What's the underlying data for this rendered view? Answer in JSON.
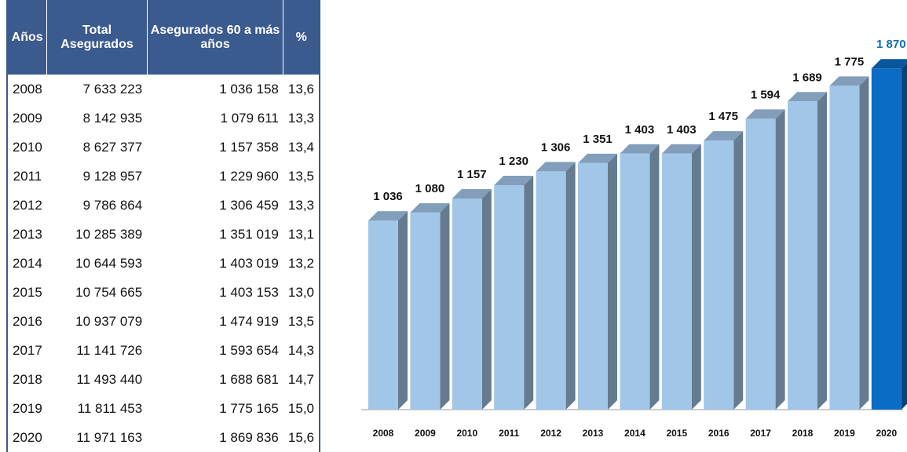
{
  "table": {
    "header": [
      "Años",
      "Total Asegurados",
      "Asegurados 60 a más años",
      "%"
    ],
    "rows": [
      [
        "2008",
        "7 633 223",
        "1 036 158",
        "13,6"
      ],
      [
        "2009",
        "8 142 935",
        "1 079 611",
        "13,3"
      ],
      [
        "2010",
        "8 627 377",
        "1 157 358",
        "13,4"
      ],
      [
        "2011",
        "9 128 957",
        "1 229 960",
        "13,5"
      ],
      [
        "2012",
        "9 786 864",
        "1 306 459",
        "13,3"
      ],
      [
        "2013",
        "10 285 389",
        "1 351 019",
        "13,1"
      ],
      [
        "2014",
        "10 644 593",
        "1 403 019",
        "13,2"
      ],
      [
        "2015",
        "10 754 665",
        "1 403 153",
        "13,0"
      ],
      [
        "2016",
        "10 937 079",
        "1 474 919",
        "13,5"
      ],
      [
        "2017",
        "11 141 726",
        "1 593 654",
        "14,3"
      ],
      [
        "2018",
        "11 493 440",
        "1 688 681",
        "14,7"
      ],
      [
        "2019",
        "11 811 453",
        "1 775 165",
        "15,0"
      ],
      [
        "2020",
        "11 971 163",
        "1 869 836",
        "15,6"
      ]
    ]
  },
  "chart_data": {
    "type": "bar3d",
    "categories": [
      "2008",
      "2009",
      "2010",
      "2011",
      "2012",
      "2013",
      "2014",
      "2015",
      "2016",
      "2017",
      "2018",
      "2019",
      "2020"
    ],
    "values": [
      1036,
      1080,
      1157,
      1230,
      1306,
      1351,
      1403,
      1403,
      1475,
      1594,
      1689,
      1775,
      1870
    ],
    "value_labels": [
      "1 036",
      "1 080",
      "1 157",
      "1 230",
      "1 306",
      "1 351",
      "1 403",
      "1 403",
      "1 475",
      "1 594",
      "1 689",
      "1 775",
      "1 870"
    ],
    "colors": [
      "#a2c6e8",
      "#a2c6e8",
      "#a2c6e8",
      "#a2c6e8",
      "#a2c6e8",
      "#a2c6e8",
      "#a2c6e8",
      "#a2c6e8",
      "#a2c6e8",
      "#a2c6e8",
      "#a2c6e8",
      "#a2c6e8",
      "#0a6cc2"
    ],
    "ylim": [
      0,
      2000
    ]
  }
}
